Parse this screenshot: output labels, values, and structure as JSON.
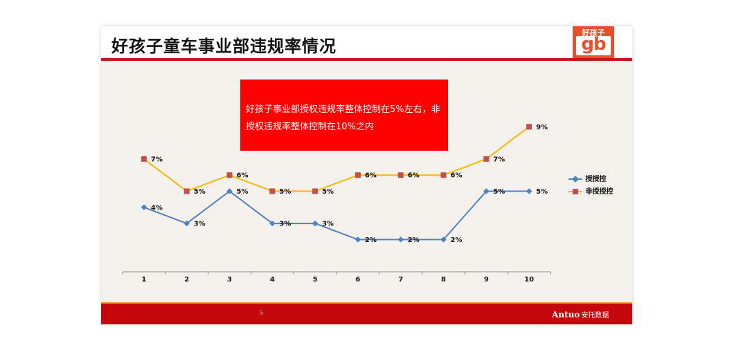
{
  "slide": {
    "title": "好孩子童车事业部违规率情况",
    "logo_top": "好孩子",
    "logo_mark": "gb",
    "note": "好孩子事业部授权违规率整体控制在5%左右，非授权违规率整体控制在10%之内",
    "page_number": "5",
    "brand_latin": "Antuo",
    "brand_cn": "安托数据"
  },
  "colors": {
    "accent_red": "#c4161c",
    "series_authorized": "#4f81bd",
    "series_unauthorized_line": "#f5b800",
    "series_unauthorized_marker": "#c0504d"
  },
  "chart_data": {
    "type": "line",
    "categories": [
      "1",
      "2",
      "3",
      "4",
      "5",
      "6",
      "7",
      "8",
      "9",
      "10"
    ],
    "series": [
      {
        "name": "授授控",
        "values": [
          4,
          3,
          5,
          3,
          3,
          2,
          2,
          2,
          5,
          5
        ],
        "labels": [
          "4%",
          "3%",
          "5%",
          "3%",
          "3%",
          "2%",
          "2%",
          "2%",
          "5%",
          "5%"
        ]
      },
      {
        "name": "非授授控",
        "values": [
          7,
          5,
          6,
          5,
          5,
          6,
          6,
          6,
          7,
          9
        ],
        "labels": [
          "7%",
          "5%",
          "6%",
          "5%",
          "5%",
          "6%",
          "6%",
          "6%",
          "7%",
          "9%"
        ]
      }
    ],
    "ylim": [
      0,
      10
    ],
    "grid": false,
    "legend": "right"
  }
}
